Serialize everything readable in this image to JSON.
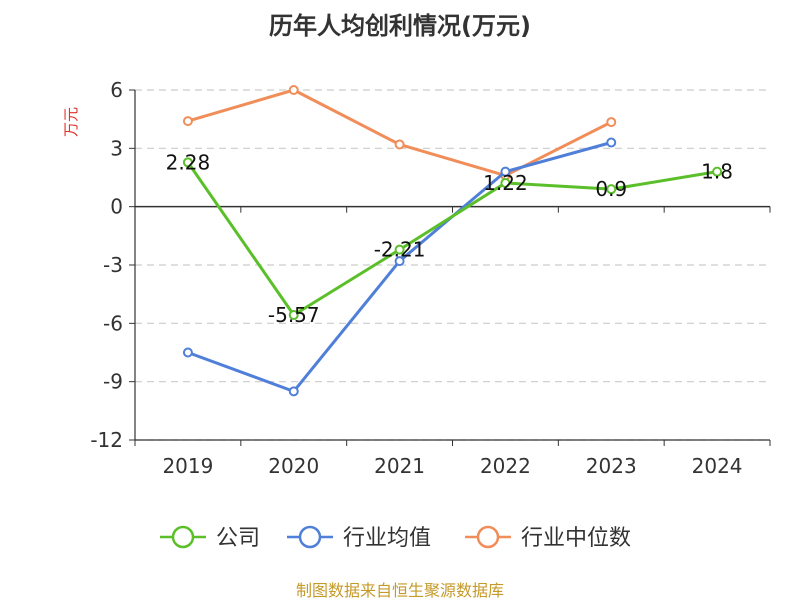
{
  "chart_data": {
    "type": "line",
    "title": "历年人均创利情况(万元)",
    "ylabel": "万元",
    "xlabel": "",
    "categories": [
      "2019",
      "2020",
      "2021",
      "2022",
      "2023",
      "2024"
    ],
    "ylim": [
      -12,
      6
    ],
    "yticks": [
      6,
      3,
      0,
      -3,
      -6,
      -9,
      -12
    ],
    "grid": true,
    "legend_position": "bottom",
    "series": [
      {
        "name": "公司",
        "color": "#5bbf2a",
        "values": [
          2.28,
          -5.57,
          -2.21,
          1.22,
          0.9,
          1.8
        ],
        "labels": [
          "2.28",
          "-5.57",
          "-2.21",
          "1.22",
          "0.9",
          "1.8"
        ]
      },
      {
        "name": "行业均值",
        "color": "#4f7fd8",
        "values": [
          -7.5,
          -9.5,
          -2.8,
          1.8,
          3.3,
          null
        ]
      },
      {
        "name": "行业中位数",
        "color": "#f08d59",
        "values": [
          4.4,
          6.0,
          3.2,
          1.6,
          4.35,
          null
        ]
      }
    ],
    "source": "制图数据来自恒生聚源数据库"
  }
}
